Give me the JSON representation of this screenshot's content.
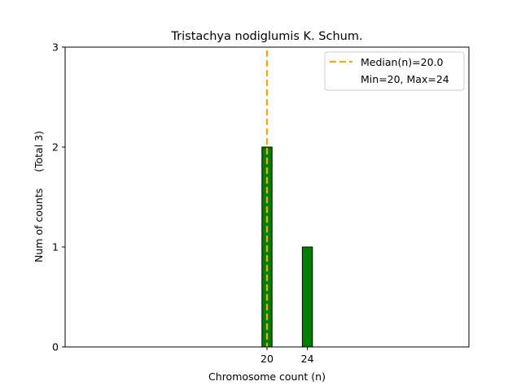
{
  "chart_data": {
    "type": "bar",
    "title": "Tristachya nodiglumis K. Schum.",
    "xlabel": "Chromosome count (n)",
    "ylabel": "Num of counts     (Total 3)",
    "xlim": [
      0,
      40
    ],
    "ylim": [
      0,
      3
    ],
    "x_ticks": [
      20,
      24
    ],
    "y_ticks": [
      0,
      1,
      2,
      3
    ],
    "bar_width": 1,
    "bar_color": "#008000",
    "bar_edge_color": "#000000",
    "bars": [
      {
        "x": 20,
        "value": 2
      },
      {
        "x": 24,
        "value": 1
      }
    ],
    "baseline_range": [
      19.5,
      27.5
    ],
    "median": {
      "value": 20.0,
      "color": "#FFA500",
      "style": "dashed"
    },
    "legend": {
      "position": "upper-right",
      "entries": [
        {
          "label": "Median(n)=20.0",
          "marker": "dashed-line",
          "color": "#FFA500"
        },
        {
          "label": "Min=20, Max=24",
          "marker": "none"
        }
      ]
    }
  }
}
